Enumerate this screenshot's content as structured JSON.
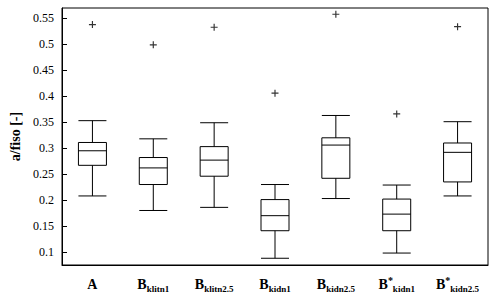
{
  "chart_data": {
    "type": "boxplot",
    "y_label": "a/fiso [-]",
    "categories": [
      "A",
      "Bklitn1",
      "Bklitn2.5",
      "Bkidn1",
      "Bkidn2.5",
      "B*kidn1",
      "B*kidn2.5"
    ],
    "boxes": [
      [
        0.208,
        0.267,
        0.295,
        0.311,
        0.353
      ],
      [
        0.18,
        0.23,
        0.262,
        0.282,
        0.318
      ],
      [
        0.186,
        0.246,
        0.277,
        0.303,
        0.349
      ],
      [
        0.088,
        0.141,
        0.17,
        0.201,
        0.23
      ],
      [
        0.203,
        0.242,
        0.306,
        0.32,
        0.363
      ],
      [
        0.098,
        0.141,
        0.173,
        0.202,
        0.229
      ],
      [
        0.208,
        0.235,
        0.292,
        0.31,
        0.351
      ]
    ],
    "outliers": [
      0.538,
      0.499,
      0.533,
      0.406,
      0.558,
      0.366,
      0.534
    ],
    "color": "#000000",
    "marker": "plus",
    "ylim": [
      0.075,
      0.57
    ],
    "yticks": [
      0.1,
      0.15,
      0.2,
      0.25,
      0.3,
      0.35,
      0.4,
      0.45,
      0.5,
      0.55
    ],
    "grid": false
  }
}
